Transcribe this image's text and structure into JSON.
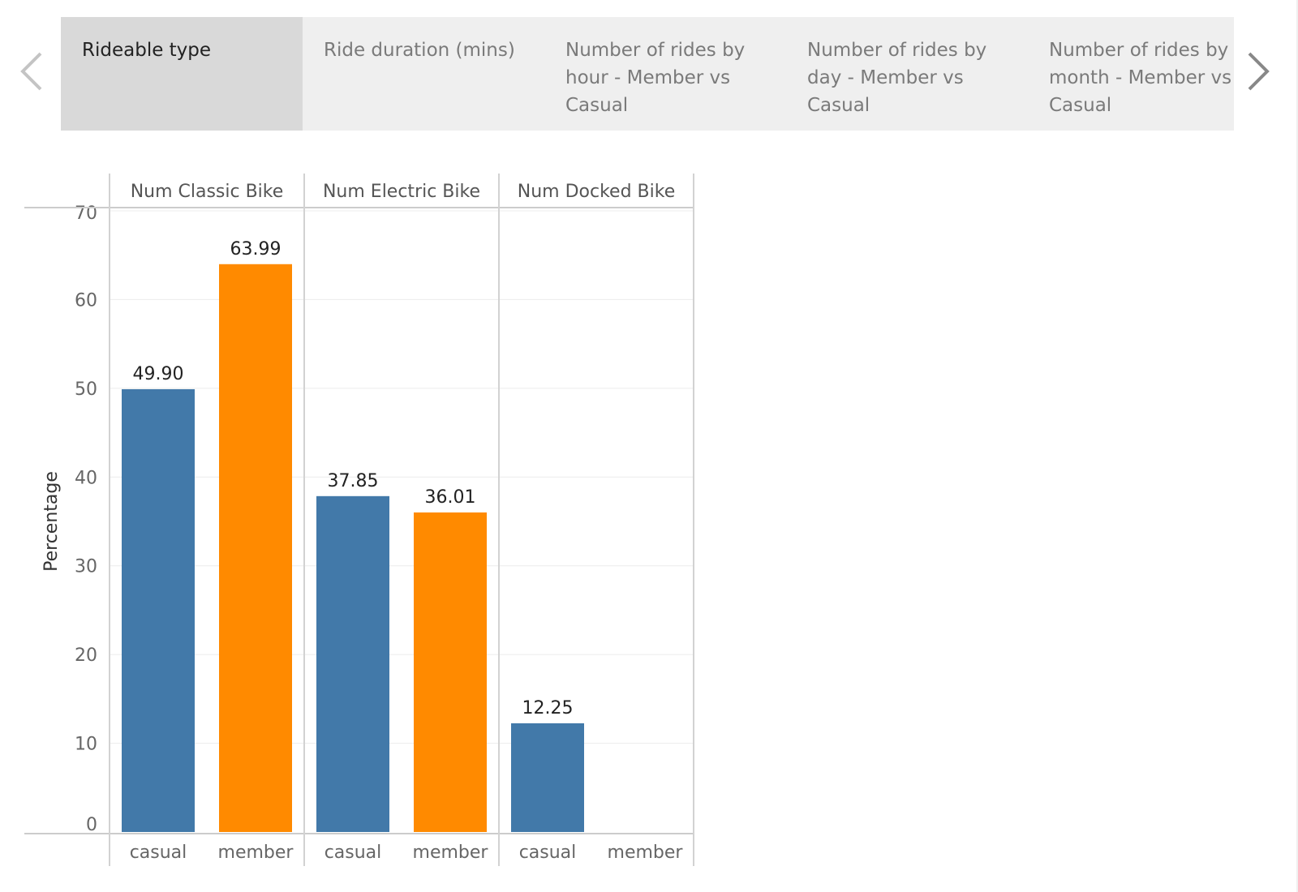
{
  "tabs": [
    {
      "label": "Rideable type",
      "active": true
    },
    {
      "label": "Ride duration (mins)",
      "active": false
    },
    {
      "label": "Number of rides by hour - Member vs Casual",
      "active": false
    },
    {
      "label": "Number of rides by day - Member vs Casual",
      "active": false
    },
    {
      "label": "Number of rides by month - Member vs Casual",
      "active": false
    }
  ],
  "nav": {
    "prev_icon": "chevron-left-icon",
    "next_icon": "chevron-right-icon"
  },
  "chart_data": {
    "type": "bar",
    "ylabel": "Percentage",
    "ylim": [
      0,
      70
    ],
    "yticks": [
      0,
      10,
      20,
      30,
      40,
      50,
      60,
      70
    ],
    "grid": true,
    "panels": [
      {
        "name": "Num Classic Bike",
        "bars": [
          {
            "category": "casual",
            "value": 49.9,
            "label": "49.90"
          },
          {
            "category": "member",
            "value": 63.99,
            "label": "63.99"
          }
        ]
      },
      {
        "name": "Num Electric Bike",
        "bars": [
          {
            "category": "casual",
            "value": 37.85,
            "label": "37.85"
          },
          {
            "category": "member",
            "value": 36.01,
            "label": "36.01"
          }
        ]
      },
      {
        "name": "Num Docked Bike",
        "bars": [
          {
            "category": "casual",
            "value": 12.25,
            "label": "12.25"
          },
          {
            "category": "member",
            "value": null,
            "label": ""
          }
        ]
      }
    ],
    "colors": {
      "casual": "#4279a9",
      "member": "#ff8a00"
    }
  }
}
